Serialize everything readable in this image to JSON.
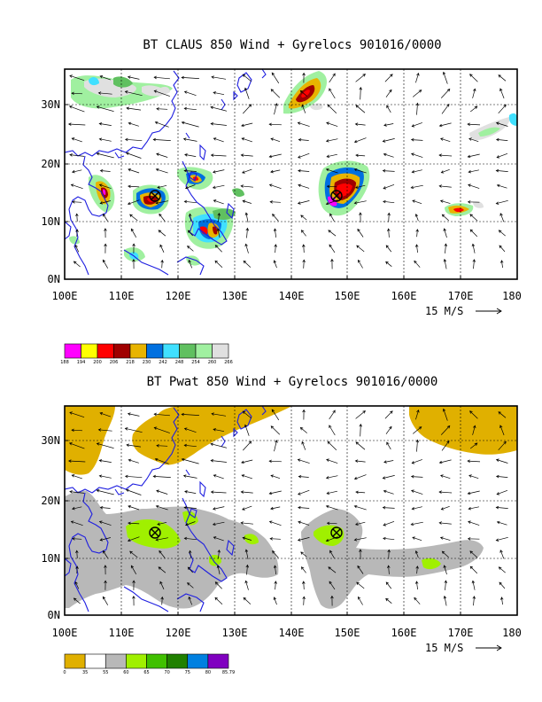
{
  "panels": [
    {
      "title": "BT CLAUS 850 Wind + Gyrelocs 901016/0000",
      "x_ticks": [
        "100E",
        "110E",
        "120E",
        "130E",
        "140E",
        "150E",
        "160E",
        "170E",
        "180"
      ],
      "y_ticks": [
        "0N",
        "10N",
        "20N",
        "30N"
      ],
      "vector_ref": "15 M/S",
      "colorbar": {
        "labels": [
          "188",
          "194",
          "200",
          "206",
          "218",
          "230",
          "242",
          "248",
          "254",
          "260",
          "266"
        ],
        "colors": [
          "#ff00ff",
          "#ffff00",
          "#ff0000",
          "#a00000",
          "#e8b400",
          "#0070e0",
          "#40e0ff",
          "#60c060",
          "#a0f0a0",
          "#e0e0e0"
        ]
      },
      "storm_markers": [
        {
          "lon": 116,
          "lat": 14.5
        },
        {
          "lon": 148,
          "lat": 14.5
        }
      ]
    },
    {
      "title": "BT Pwat 850 Wind + Gyrelocs 901016/0000",
      "x_ticks": [
        "100E",
        "110E",
        "120E",
        "130E",
        "140E",
        "150E",
        "160E",
        "170E",
        "180"
      ],
      "y_ticks": [
        "0N",
        "10N",
        "20N",
        "30N"
      ],
      "vector_ref": "15 M/S",
      "colorbar": {
        "labels": [
          "0",
          "35",
          "55",
          "60",
          "65",
          "70",
          "75",
          "80",
          "85.79"
        ],
        "colors": [
          "#e0b000",
          "#ffffff",
          "#b8b8b8",
          "#a0f000",
          "#40c000",
          "#208000",
          "#0080e0",
          "#8000c0"
        ]
      },
      "storm_markers": [
        {
          "lon": 116,
          "lat": 14.5
        },
        {
          "lon": 148,
          "lat": 14.5
        }
      ]
    }
  ]
}
